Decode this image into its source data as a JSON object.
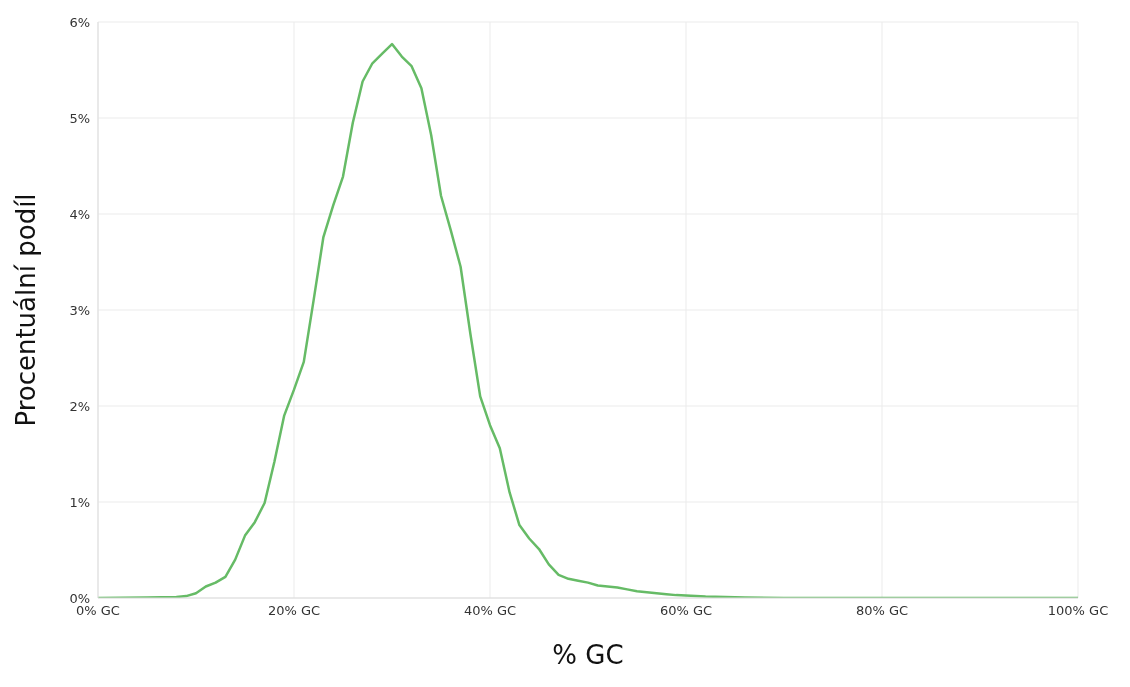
{
  "chart_data": {
    "type": "line",
    "xlabel": "% GC",
    "ylabel": "Procentuální podíl",
    "x": [
      0,
      5,
      8,
      9,
      10,
      11,
      12,
      13,
      14,
      15,
      16,
      17,
      18,
      19,
      20,
      21,
      22,
      23,
      24,
      25,
      26,
      27,
      28,
      29,
      30,
      31,
      32,
      33,
      34,
      35,
      36,
      37,
      38,
      39,
      40,
      41,
      42,
      43,
      44,
      45,
      46,
      47,
      48,
      49,
      50,
      51,
      52,
      53,
      54,
      55,
      56,
      57,
      58,
      59,
      60,
      62,
      64,
      66,
      70,
      80,
      90,
      100
    ],
    "series": [
      {
        "color": "#66bb66",
        "values": [
          0,
          0.005,
          0.01,
          0.02,
          0.05,
          0.12,
          0.16,
          0.22,
          0.4,
          0.65,
          0.79,
          0.99,
          1.42,
          1.9,
          2.17,
          2.46,
          3.1,
          3.76,
          4.09,
          4.39,
          4.95,
          5.38,
          5.57,
          5.67,
          5.77,
          5.64,
          5.54,
          5.31,
          4.82,
          4.19,
          3.83,
          3.45,
          2.75,
          2.1,
          1.8,
          1.56,
          1.1,
          0.76,
          0.62,
          0.51,
          0.35,
          0.24,
          0.2,
          0.18,
          0.16,
          0.13,
          0.12,
          0.11,
          0.09,
          0.07,
          0.06,
          0.05,
          0.04,
          0.03,
          0.025,
          0.015,
          0.01,
          0.005,
          0,
          0,
          0,
          0
        ]
      }
    ],
    "xlim": [
      0,
      100
    ],
    "xticks": [
      {
        "value": 0,
        "label": "0% GC"
      },
      {
        "value": 20,
        "label": "20% GC"
      },
      {
        "value": 40,
        "label": "40% GC"
      },
      {
        "value": 60,
        "label": "60% GC"
      },
      {
        "value": 80,
        "label": "80% GC"
      },
      {
        "value": 100,
        "label": "100% GC"
      }
    ],
    "ylim": [
      0,
      6
    ],
    "yticks": [
      {
        "value": 0,
        "label": "0%"
      },
      {
        "value": 1,
        "label": "1%"
      },
      {
        "value": 2,
        "label": "2%"
      },
      {
        "value": 3,
        "label": "3%"
      },
      {
        "value": 4,
        "label": "4%"
      },
      {
        "value": 5,
        "label": "5%"
      },
      {
        "value": 6,
        "label": "6%"
      }
    ],
    "grid": true,
    "marker": "none",
    "line_style": "solid"
  }
}
